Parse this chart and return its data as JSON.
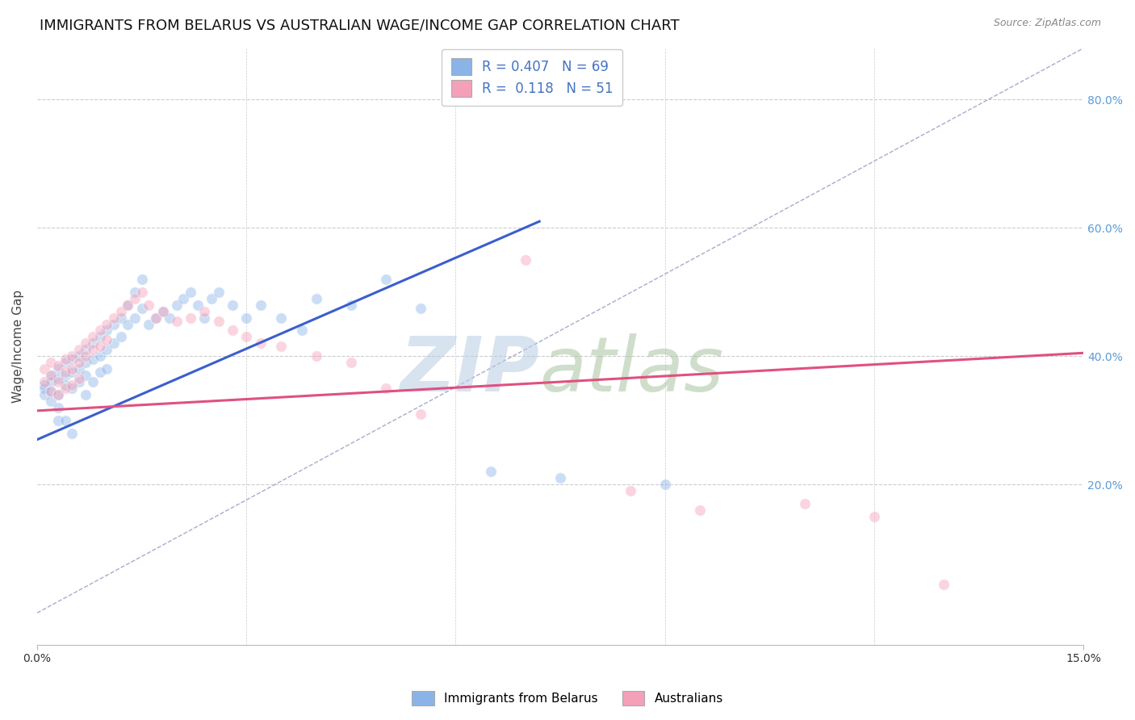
{
  "title": "IMMIGRANTS FROM BELARUS VS AUSTRALIAN WAGE/INCOME GAP CORRELATION CHART",
  "source": "Source: ZipAtlas.com",
  "ylabel": "Wage/Income Gap",
  "xlim": [
    0.0,
    0.15
  ],
  "ylim": [
    -0.05,
    0.88
  ],
  "color_blue": "#8ab4e8",
  "color_pink": "#f4a0b8",
  "tick_color_right": "#5b9bd5",
  "legend_r1": "R = 0.407   N = 69",
  "legend_r2": "R =  0.118   N = 51",
  "blue_scatter_x": [
    0.001,
    0.001,
    0.001,
    0.002,
    0.002,
    0.002,
    0.002,
    0.003,
    0.003,
    0.003,
    0.003,
    0.003,
    0.004,
    0.004,
    0.004,
    0.004,
    0.005,
    0.005,
    0.005,
    0.005,
    0.006,
    0.006,
    0.006,
    0.007,
    0.007,
    0.007,
    0.007,
    0.008,
    0.008,
    0.008,
    0.009,
    0.009,
    0.009,
    0.01,
    0.01,
    0.01,
    0.011,
    0.011,
    0.012,
    0.012,
    0.013,
    0.013,
    0.014,
    0.014,
    0.015,
    0.015,
    0.016,
    0.017,
    0.018,
    0.019,
    0.02,
    0.021,
    0.022,
    0.023,
    0.024,
    0.025,
    0.026,
    0.028,
    0.03,
    0.032,
    0.035,
    0.038,
    0.04,
    0.045,
    0.05,
    0.055,
    0.065,
    0.075,
    0.09
  ],
  "blue_scatter_y": [
    0.355,
    0.35,
    0.34,
    0.37,
    0.36,
    0.345,
    0.33,
    0.38,
    0.365,
    0.34,
    0.32,
    0.3,
    0.39,
    0.37,
    0.355,
    0.3,
    0.395,
    0.375,
    0.35,
    0.28,
    0.4,
    0.38,
    0.36,
    0.41,
    0.39,
    0.37,
    0.34,
    0.42,
    0.395,
    0.36,
    0.43,
    0.4,
    0.375,
    0.44,
    0.41,
    0.38,
    0.45,
    0.42,
    0.46,
    0.43,
    0.48,
    0.45,
    0.5,
    0.46,
    0.52,
    0.475,
    0.45,
    0.46,
    0.47,
    0.46,
    0.48,
    0.49,
    0.5,
    0.48,
    0.46,
    0.49,
    0.5,
    0.48,
    0.46,
    0.48,
    0.46,
    0.44,
    0.49,
    0.48,
    0.52,
    0.475,
    0.22,
    0.21,
    0.2
  ],
  "pink_scatter_x": [
    0.001,
    0.001,
    0.002,
    0.002,
    0.002,
    0.003,
    0.003,
    0.003,
    0.004,
    0.004,
    0.004,
    0.005,
    0.005,
    0.005,
    0.006,
    0.006,
    0.006,
    0.007,
    0.007,
    0.008,
    0.008,
    0.009,
    0.009,
    0.01,
    0.01,
    0.011,
    0.012,
    0.013,
    0.014,
    0.015,
    0.016,
    0.017,
    0.018,
    0.02,
    0.022,
    0.024,
    0.026,
    0.028,
    0.03,
    0.032,
    0.035,
    0.04,
    0.045,
    0.05,
    0.055,
    0.07,
    0.085,
    0.095,
    0.11,
    0.12,
    0.13
  ],
  "pink_scatter_y": [
    0.38,
    0.36,
    0.39,
    0.37,
    0.345,
    0.385,
    0.36,
    0.34,
    0.395,
    0.375,
    0.35,
    0.4,
    0.38,
    0.355,
    0.41,
    0.39,
    0.365,
    0.42,
    0.4,
    0.43,
    0.41,
    0.44,
    0.415,
    0.45,
    0.425,
    0.46,
    0.47,
    0.48,
    0.49,
    0.5,
    0.48,
    0.46,
    0.47,
    0.455,
    0.46,
    0.47,
    0.455,
    0.44,
    0.43,
    0.42,
    0.415,
    0.4,
    0.39,
    0.35,
    0.31,
    0.55,
    0.19,
    0.16,
    0.17,
    0.15,
    0.045
  ],
  "blue_line_x": [
    0.0,
    0.072
  ],
  "blue_line_y": [
    0.27,
    0.61
  ],
  "pink_line_x": [
    0.0,
    0.15
  ],
  "pink_line_y": [
    0.315,
    0.405
  ],
  "grey_dash_line_x": [
    0.0,
    0.15
  ],
  "grey_dash_line_y": [
    0.0,
    0.88
  ],
  "background_color": "#ffffff",
  "grid_color": "#cccccc",
  "title_fontsize": 13,
  "axis_label_fontsize": 11,
  "tick_fontsize": 10,
  "scatter_size": 95,
  "scatter_alpha": 0.45
}
